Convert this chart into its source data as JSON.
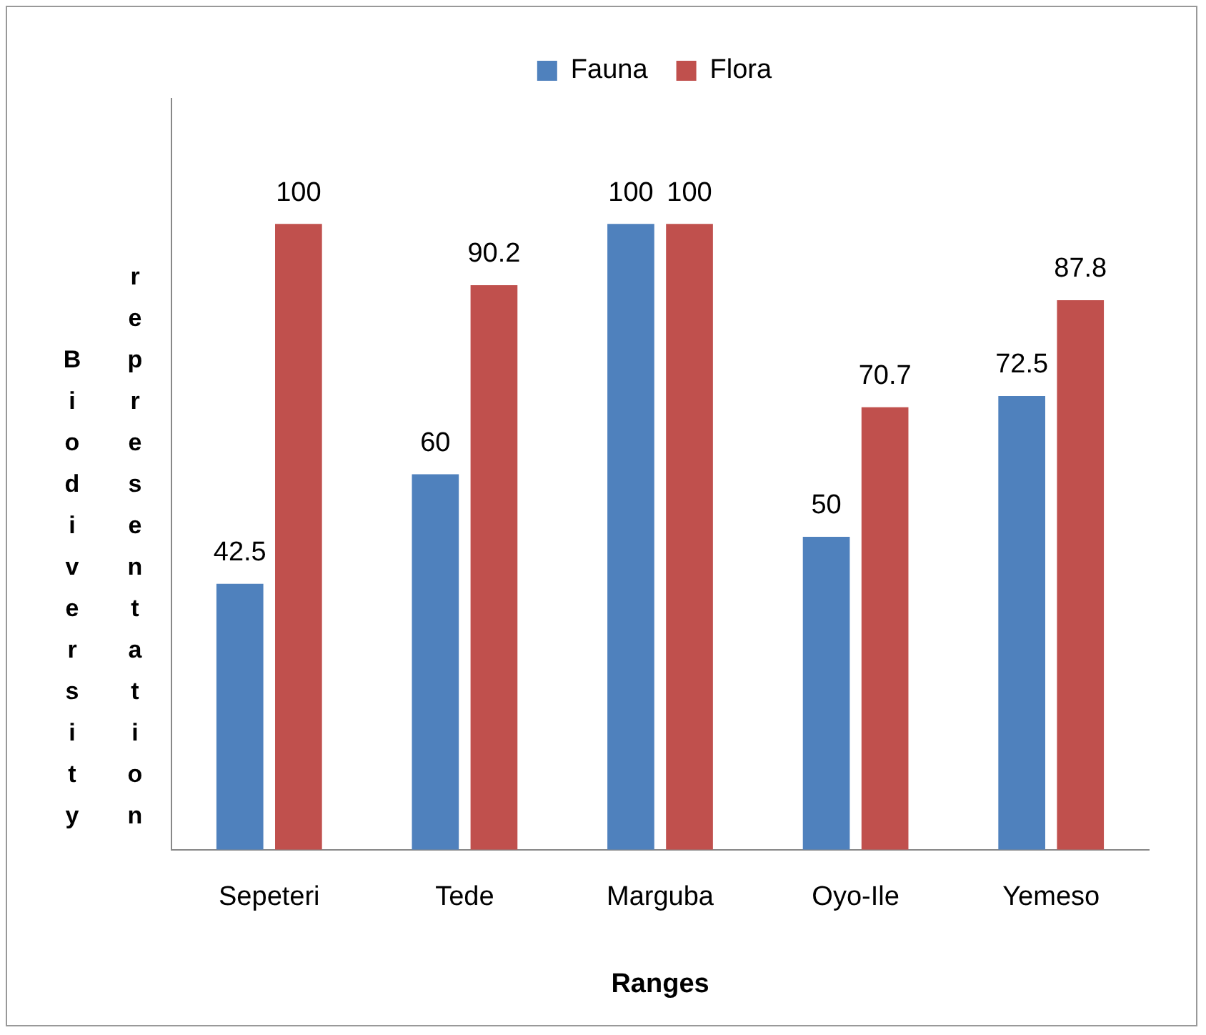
{
  "chart_data": {
    "type": "bar",
    "xlabel": "Ranges",
    "ylabel": "Biodiversity representation",
    "categories": [
      "Sepeteri",
      "Tede",
      "Marguba",
      "Oyo-Ile",
      "Yemeso"
    ],
    "series": [
      {
        "name": "Fauna",
        "color": "#4f81bd",
        "values": [
          42.5,
          60,
          100,
          50,
          72.5
        ]
      },
      {
        "name": "Flora",
        "color": "#c0504d",
        "values": [
          100,
          90.2,
          100,
          70.7,
          87.8
        ]
      }
    ],
    "data_labels": true,
    "legend": "top",
    "grid": false
  }
}
